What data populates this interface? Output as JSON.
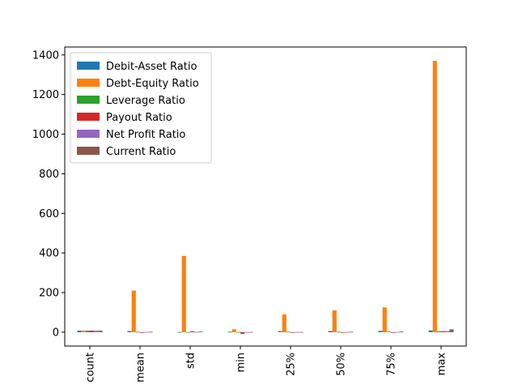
{
  "chart_data": {
    "type": "bar",
    "categories": [
      "count",
      "mean",
      "std",
      "min",
      "25%",
      "50%",
      "75%",
      "max"
    ],
    "series": [
      {
        "name": "Debit-Asset Ratio",
        "color": "#1f77b4",
        "values": [
          8,
          6,
          1,
          2,
          5,
          6,
          7,
          9
        ]
      },
      {
        "name": "Debt-Equity Ratio",
        "color": "#ff7f0e",
        "values": [
          8,
          210,
          385,
          15,
          90,
          110,
          125,
          1370
        ]
      },
      {
        "name": "Leverage Ratio",
        "color": "#2ca02c",
        "values": [
          8,
          2,
          0.5,
          1,
          2,
          2,
          3,
          5
        ]
      },
      {
        "name": "Payout Ratio",
        "color": "#d62728",
        "values": [
          8,
          -3,
          5,
          -8,
          -2,
          -1,
          -2,
          5
        ]
      },
      {
        "name": "Net Profit Ratio",
        "color": "#9467bd",
        "values": [
          8,
          1,
          1,
          0.5,
          1,
          1,
          1,
          6
        ]
      },
      {
        "name": "Current Ratio",
        "color": "#8c564b",
        "values": [
          8,
          2,
          3,
          1,
          1,
          2,
          3,
          14
        ]
      }
    ],
    "ylim": [
      -70,
      1440
    ],
    "yticks": [
      0,
      200,
      400,
      600,
      800,
      1000,
      1200,
      1400
    ],
    "legend_position": "upper-left",
    "grid": false,
    "title": "",
    "xlabel": "",
    "ylabel": ""
  }
}
